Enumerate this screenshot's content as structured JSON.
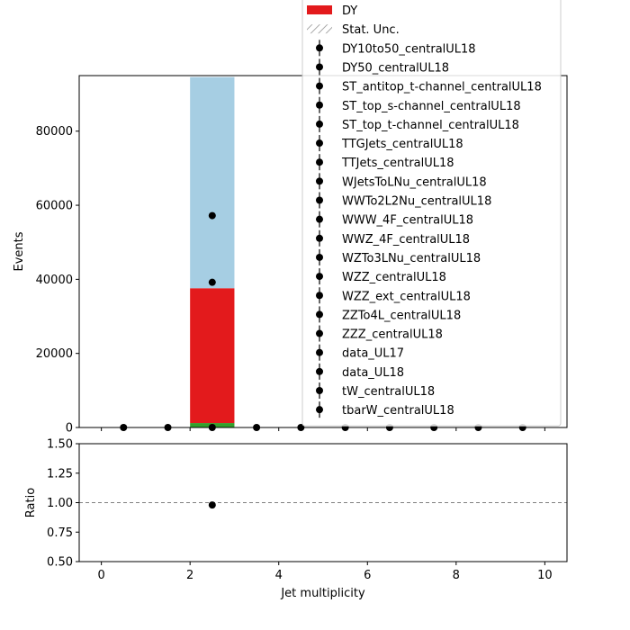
{
  "colors": {
    "signal_light": "#a6cee3",
    "dy": "#e31a1c",
    "green": "#33a02c",
    "data": "#000000",
    "reference_line": "#808080"
  },
  "chart_data": [
    {
      "type": "bar",
      "stacked": true,
      "xlim": [
        -0.5,
        10.5
      ],
      "ylim": [
        0,
        95000
      ],
      "ylabel": "Events",
      "yticks": [
        "0",
        "20000",
        "40000",
        "60000",
        "80000"
      ],
      "ytick_values": [
        0,
        20000,
        40000,
        60000,
        80000
      ],
      "bins": [
        {
          "low": 2,
          "high": 3
        }
      ],
      "stack_series": [
        {
          "name": "",
          "color": "#33a02c",
          "values": [
            1200
          ]
        },
        {
          "name": "DY",
          "color": "#e31a1c",
          "values": [
            36400
          ]
        },
        {
          "name": "",
          "color": "#a6cee3",
          "values": [
            57000
          ]
        }
      ],
      "points": [
        {
          "x": 0.5,
          "y": 0
        },
        {
          "x": 1.5,
          "y": 0
        },
        {
          "x": 2.5,
          "y": 0
        },
        {
          "x": 2.5,
          "y": 39200
        },
        {
          "x": 2.5,
          "y": 57200
        },
        {
          "x": 3.5,
          "y": 0
        },
        {
          "x": 4.5,
          "y": 0
        },
        {
          "x": 5.5,
          "y": 0
        },
        {
          "x": 6.5,
          "y": 0
        },
        {
          "x": 7.5,
          "y": 0
        },
        {
          "x": 8.5,
          "y": 0
        },
        {
          "x": 9.5,
          "y": 0
        }
      ],
      "legend_placement": "top-right",
      "legend": [
        {
          "label": "DY",
          "marker": "patch",
          "color": "#e31a1c"
        },
        {
          "label": "Stat. Unc.",
          "marker": "hatch"
        },
        {
          "label": "DY10to50_centralUL18",
          "marker": "point"
        },
        {
          "label": "DY50_centralUL18",
          "marker": "point"
        },
        {
          "label": "ST_antitop_t-channel_centralUL18",
          "marker": "point"
        },
        {
          "label": "ST_top_s-channel_centralUL18",
          "marker": "point"
        },
        {
          "label": "ST_top_t-channel_centralUL18",
          "marker": "point"
        },
        {
          "label": "TTGJets_centralUL18",
          "marker": "point"
        },
        {
          "label": "TTJets_centralUL18",
          "marker": "point"
        },
        {
          "label": "WJetsToLNu_centralUL18",
          "marker": "point"
        },
        {
          "label": "WWTo2L2Nu_centralUL18",
          "marker": "point"
        },
        {
          "label": "WWW_4F_centralUL18",
          "marker": "point"
        },
        {
          "label": "WWZ_4F_centralUL18",
          "marker": "point"
        },
        {
          "label": "WZTo3LNu_centralUL18",
          "marker": "point"
        },
        {
          "label": "WZZ_centralUL18",
          "marker": "point"
        },
        {
          "label": "WZZ_ext_centralUL18",
          "marker": "point"
        },
        {
          "label": "ZZTo4L_centralUL18",
          "marker": "point"
        },
        {
          "label": "ZZZ_centralUL18",
          "marker": "point"
        },
        {
          "label": "data_UL17",
          "marker": "point"
        },
        {
          "label": "data_UL18",
          "marker": "point"
        },
        {
          "label": "tW_centralUL18",
          "marker": "point"
        },
        {
          "label": "tbarW_centralUL18",
          "marker": "point"
        }
      ]
    },
    {
      "type": "scatter",
      "xlim": [
        -0.5,
        10.5
      ],
      "ylim": [
        0.5,
        1.5
      ],
      "xlabel": "Jet multiplicity",
      "ylabel": "Ratio",
      "xticks": [
        "0",
        "2",
        "4",
        "6",
        "8",
        "10"
      ],
      "xtick_values": [
        0,
        2,
        4,
        6,
        8,
        10
      ],
      "yticks": [
        "0.50",
        "0.75",
        "1.00",
        "1.25",
        "1.50"
      ],
      "ytick_values": [
        0.5,
        0.75,
        1.0,
        1.25,
        1.5
      ],
      "reference_line": 1.0,
      "points": [
        {
          "x": 2.5,
          "y": 0.98
        }
      ]
    }
  ]
}
